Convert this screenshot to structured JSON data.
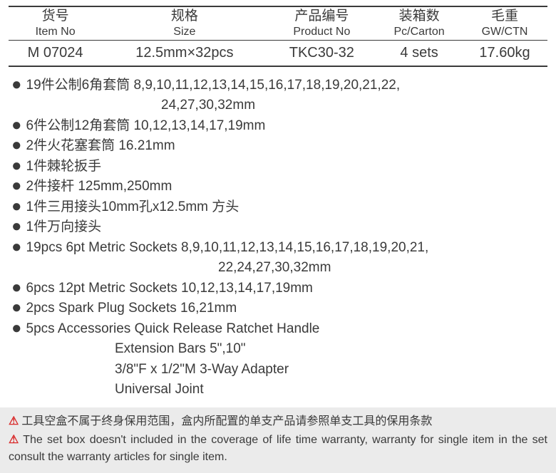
{
  "table": {
    "headers": [
      {
        "cn": "货号",
        "en": "Item No"
      },
      {
        "cn": "规格",
        "en": "Size"
      },
      {
        "cn": "产品编号",
        "en": "Product No"
      },
      {
        "cn": "装箱数",
        "en": "Pc/Carton"
      },
      {
        "cn": "毛重",
        "en": "GW/CTN"
      }
    ],
    "row": {
      "itemNo": "M 07024",
      "size": "12.5mm×32pcs",
      "productNo": "TKC30-32",
      "pcCarton": "4 sets",
      "gw": "17.60kg"
    }
  },
  "specs": [
    {
      "main": "19件公制6角套筒  8,9,10,11,12,13,14,15,16,17,18,19,20,21,22,",
      "cont": [
        "24,27,30,32mm"
      ],
      "contClass": ""
    },
    {
      "main": "6件公制12角套筒  10,12,13,14,17,19mm"
    },
    {
      "main": "2件火花塞套筒 16.21mm"
    },
    {
      "main": " 1件棘轮扳手"
    },
    {
      "main": "2件接杆  125mm,250mm"
    },
    {
      "main": "1件三用接头10mm孔x12.5mm 方头"
    },
    {
      "main": "1件万向接头"
    },
    {
      "main": "19pcs 6pt Metric Sockets 8,9,10,11,12,13,14,15,16,17,18,19,20,21,",
      "cont": [
        "22,24,27,30,32mm"
      ],
      "contClass": "en"
    },
    {
      "main": "6pcs 12pt Metric Sockets 10,12,13,14,17,19mm"
    },
    {
      "main": "2pcs Spark Plug Sockets 16,21mm"
    },
    {
      "main": "5pcs Accessories Quick Release Ratchet Handle",
      "cont": [
        "Extension Bars 5\",10\"",
        "3/8\"F x 1/2\"M 3-Way Adapter",
        "Universal Joint"
      ],
      "contClass": "acc"
    }
  ],
  "warranty": {
    "cn": "工具空盒不属于终身保用范围，盒内所配置的单支产品请参照单支工具的保用条款",
    "en": "The set box doesn't included in the coverage of life time warranty, warranty for single item in the set consult the warranty articles for single item."
  },
  "colors": {
    "text": "#3a3a3a",
    "warnRed": "#d92b2b",
    "warrantyBg": "#ebebeb"
  }
}
